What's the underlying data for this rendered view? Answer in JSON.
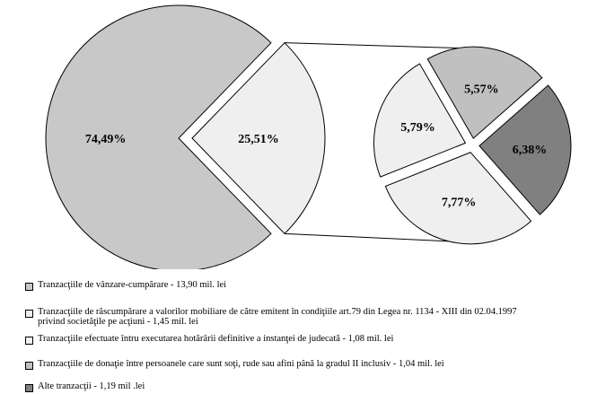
{
  "chart_data": {
    "type": "pie",
    "subtype": "pie-of-pie",
    "main_pie": {
      "slices": [
        {
          "label": "74,49%",
          "value": 74.49,
          "color": "#c8c8c8"
        },
        {
          "label": "25,51%",
          "value": 25.51,
          "color": "#efefef",
          "exploded": true,
          "expands_to": "secondary_pie"
        }
      ]
    },
    "secondary_pie": {
      "slices": [
        {
          "label": "5,57%",
          "value": 5.57,
          "color": "#c0c0c0"
        },
        {
          "label": "6,38%",
          "value": 6.38,
          "color": "#808080"
        },
        {
          "label": "7,77%",
          "value": 7.77,
          "color": "#efefef"
        },
        {
          "label": "5,79%",
          "value": 5.79,
          "color": "#efefef"
        }
      ]
    },
    "legend": {
      "placement": "bottom",
      "items": [
        {
          "text": "Tranzacţiile de vânzare-cumpărare - 13,90 mil. lei",
          "color": "#c8c8c8"
        },
        {
          "text": "Tranzacţiile de răscumpărare a valorilor mobiliare de către emitent în condiţiile art.79 din Legea nr. 1134 - XIII din 02.04.1997\nprivind societăţile pe acţiuni - 1,45 mil. lei",
          "color": "#efefef"
        },
        {
          "text": "Tranzacţiile efectuate întru executarea hotărârii definitive a instanţei de judecată - 1,08 mil. lei",
          "color": "#efefef"
        },
        {
          "text": "Tranzacţiile de donaţie între persoanele care sunt soţi, rude sau afini până la gradul II inclusiv - 1,04 mil. lei",
          "color": "#c0c0c0"
        },
        {
          "text": "Alte tranzacţii - 1,19 mil .lei",
          "color": "#808080"
        }
      ]
    }
  }
}
